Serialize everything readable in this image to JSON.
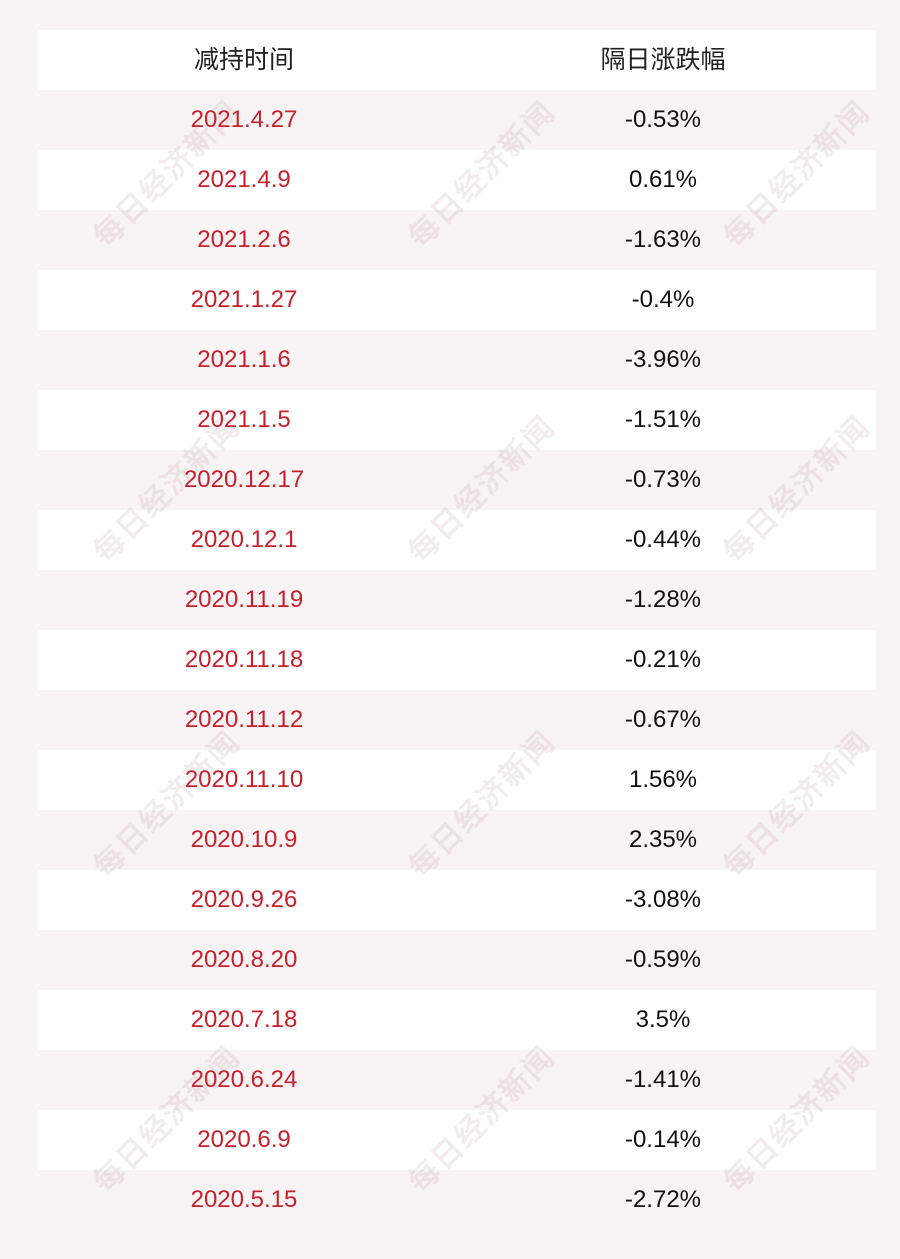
{
  "table": {
    "headers": {
      "date": "减持时间",
      "change": "隔日涨跌幅"
    },
    "rows": [
      {
        "date": "2021.4.27",
        "change": "-0.53%"
      },
      {
        "date": "2021.4.9",
        "change": "0.61%"
      },
      {
        "date": "2021.2.6",
        "change": "-1.63%"
      },
      {
        "date": "2021.1.27",
        "change": "-0.4%"
      },
      {
        "date": "2021.1.6",
        "change": "-3.96%"
      },
      {
        "date": "2021.1.5",
        "change": "-1.51%"
      },
      {
        "date": "2020.12.17",
        "change": "-0.73%"
      },
      {
        "date": "2020.12.1",
        "change": "-0.44%"
      },
      {
        "date": "2020.11.19",
        "change": "-1.28%"
      },
      {
        "date": "2020.11.18",
        "change": "-0.21%"
      },
      {
        "date": "2020.11.12",
        "change": "-0.67%"
      },
      {
        "date": "2020.11.10",
        "change": "1.56%"
      },
      {
        "date": "2020.10.9",
        "change": "2.35%"
      },
      {
        "date": "2020.9.26",
        "change": "-3.08%"
      },
      {
        "date": "2020.8.20",
        "change": "-0.59%"
      },
      {
        "date": "2020.7.18",
        "change": "3.5%"
      },
      {
        "date": "2020.6.24",
        "change": "-1.41%"
      },
      {
        "date": "2020.6.9",
        "change": "-0.14%"
      },
      {
        "date": "2020.5.15",
        "change": "-2.72%"
      }
    ]
  },
  "watermark": {
    "text": "每日经济新闻"
  },
  "colors": {
    "date_text": "#c8202b",
    "change_text": "#111111",
    "row_white": "#ffffff",
    "row_tinted": "#f8f4f5"
  }
}
